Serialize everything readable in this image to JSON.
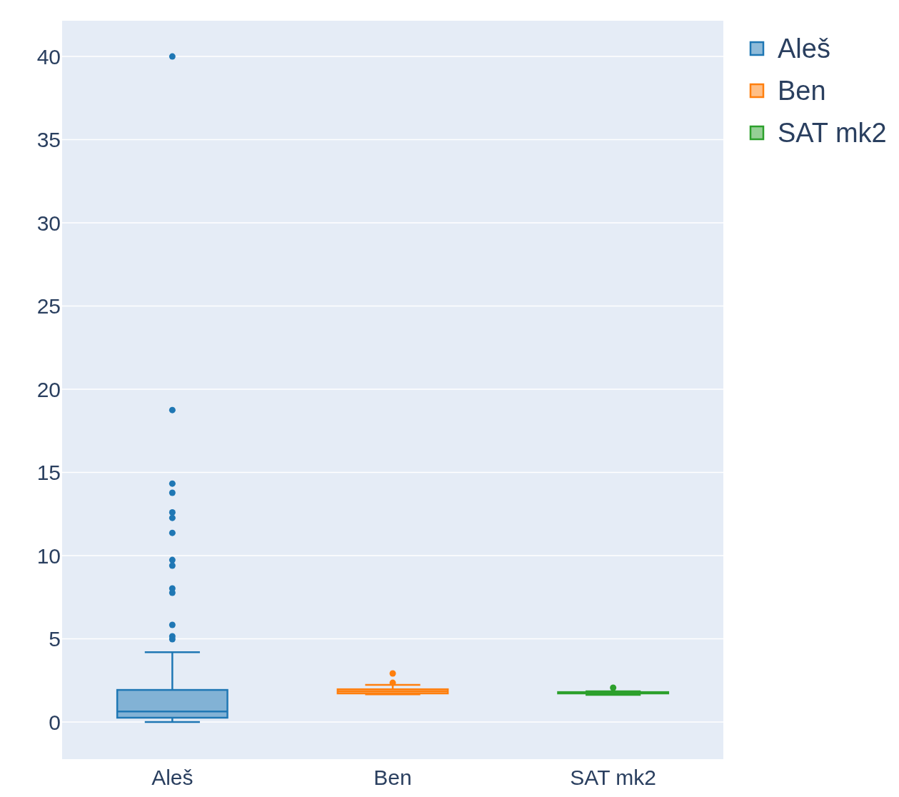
{
  "chart_data": {
    "type": "box",
    "categories": [
      "Aleš",
      "Ben",
      "SAT mk2"
    ],
    "series": [
      {
        "name": "Aleš",
        "color": "#1f77b4",
        "boxes": [
          {
            "low": 0,
            "q1": 0.26,
            "median": 0.64,
            "q3": 1.93,
            "high": 4.2,
            "outliers": [
              40,
              18.75,
              14.33,
              13.78,
              12.6,
              12.27,
              11.37,
              9.74,
              9.4,
              8.03,
              7.77,
              5.84,
              5.15,
              4.98
            ]
          },
          null,
          null
        ]
      },
      {
        "name": "Ben",
        "color": "#ff7f0e",
        "boxes": [
          null,
          {
            "low": 1.67,
            "q1": 1.72,
            "median": 1.85,
            "q3": 1.97,
            "high": 2.23,
            "outliers": [
              2.92,
              2.36
            ]
          },
          null
        ]
      },
      {
        "name": "SAT mk2",
        "color": "#2ca02c",
        "boxes": [
          null,
          null,
          {
            "low": 1.63,
            "q1": 1.72,
            "median": 1.76,
            "q3": 1.8,
            "high": 1.85,
            "outliers": [
              2.06
            ]
          }
        ]
      }
    ],
    "ylim": [
      -2.23,
      42.15
    ],
    "yticks": [
      0,
      5,
      10,
      15,
      20,
      25,
      30,
      35,
      40
    ],
    "grid": "y",
    "legend": "top right"
  }
}
